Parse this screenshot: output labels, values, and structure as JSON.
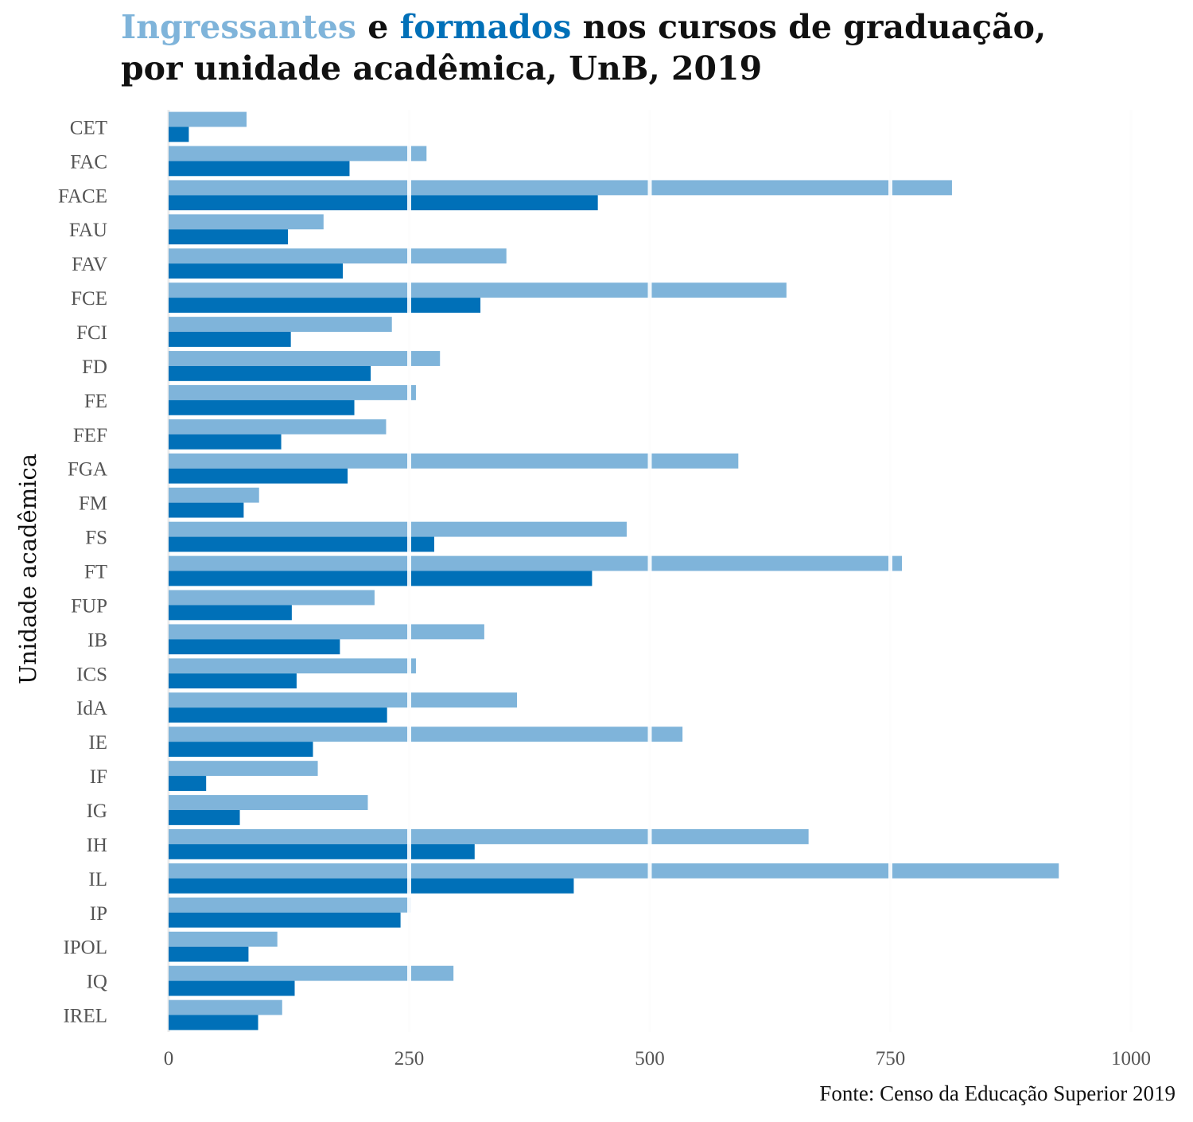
{
  "title": {
    "part1": "Ingressantes",
    "part2": " e ",
    "part3": "formados",
    "part4": " nos cursos de graduação,",
    "line2": "por unidade acadêmica, UnB, 2019"
  },
  "colors": {
    "ingressantes": "#7fb4da",
    "formados": "#0070b8",
    "grid": "#ebebeb",
    "text": "#111111",
    "tick": "#555555"
  },
  "caption": "Fonte: Censo da Educação Superior 2019",
  "chart_data": {
    "type": "bar",
    "orientation": "horizontal",
    "title": "Ingressantes e formados nos cursos de graduação, por unidade acadêmica, UnB, 2019",
    "xlabel": "",
    "ylabel": "Unidade acadêmica",
    "xlim": [
      0,
      1000
    ],
    "xticks": [
      0,
      250,
      500,
      750,
      1000
    ],
    "grid": true,
    "categories": [
      "CET",
      "FAC",
      "FACE",
      "FAU",
      "FAV",
      "FCE",
      "FCI",
      "FD",
      "FE",
      "FEF",
      "FGA",
      "FM",
      "FS",
      "FT",
      "FUP",
      "IB",
      "ICS",
      "IdA",
      "IE",
      "IF",
      "IG",
      "IH",
      "IL",
      "IP",
      "IPOL",
      "IQ",
      "IREL"
    ],
    "series": [
      {
        "name": "Ingressantes",
        "color": "#7fb4da",
        "values": [
          81,
          268,
          814,
          161,
          351,
          642,
          232,
          282,
          257,
          226,
          592,
          94,
          476,
          762,
          214,
          328,
          257,
          362,
          534,
          155,
          207,
          665,
          925,
          252,
          113,
          296,
          118
        ]
      },
      {
        "name": "formados",
        "color": "#0070b8",
        "values": [
          21,
          188,
          446,
          124,
          181,
          324,
          127,
          210,
          193,
          117,
          186,
          78,
          276,
          440,
          128,
          178,
          133,
          227,
          150,
          39,
          74,
          318,
          421,
          241,
          83,
          131,
          93
        ]
      }
    ]
  }
}
